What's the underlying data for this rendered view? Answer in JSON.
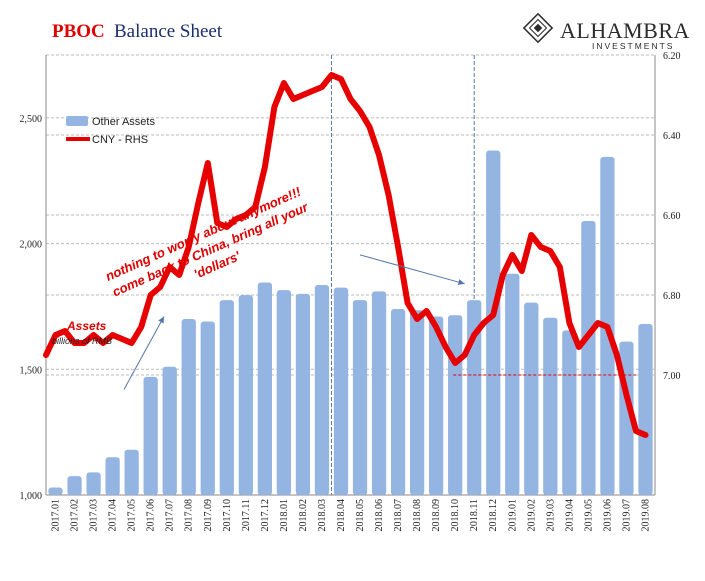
{
  "header": {
    "title_part1": "PBOC",
    "title_part2": "Balance Sheet"
  },
  "logo": {
    "name": "ALHAMBRA",
    "subtitle": "INVESTMENTS"
  },
  "legend": {
    "bars": "Other Assets",
    "line": "CNY - RHS"
  },
  "annotations": {
    "main": [
      "nothing to worry about anymore!!!",
      "come back to China, bring all your",
      "'dollars'"
    ],
    "assets_label": "Assets",
    "units_label": "billions of RMB"
  },
  "colors": {
    "bar": "#94b4e2",
    "line": "#e60000",
    "title_red": "#e00000",
    "title_blue": "#1a2f6e",
    "grid": "#bbbbbb",
    "refline": "#e60000"
  },
  "chart_data": {
    "type": "bar+line",
    "categories": [
      "2017.01",
      "2017.02",
      "2017.03",
      "2017.04",
      "2017.05",
      "2017.06",
      "2017.07",
      "2017.08",
      "2017.09",
      "2017.10",
      "2017.11",
      "2017.12",
      "2018.01",
      "2018.02",
      "2018.03",
      "2018.04",
      "2018.05",
      "2018.06",
      "2018.07",
      "2018.08",
      "2018.09",
      "2018.10",
      "2018.11",
      "2018.12",
      "2019.01",
      "2019.02",
      "2019.03",
      "2019.04",
      "2019.05",
      "2019.06",
      "2019.07",
      "2019.08"
    ],
    "series": [
      {
        "name": "Other Assets",
        "axis": "left",
        "type": "bar",
        "values": [
          1030,
          1075,
          1090,
          1150,
          1180,
          1470,
          1510,
          1700,
          1690,
          1775,
          1795,
          1845,
          1815,
          1800,
          1835,
          1825,
          1775,
          1810,
          1740,
          1735,
          1710,
          1715,
          1775,
          2370,
          1880,
          1765,
          1705,
          1655,
          2090,
          2345,
          1610,
          1680
        ]
      },
      {
        "name": "CNY - RHS",
        "axis": "right",
        "type": "line",
        "inverted": true,
        "x": [
          0,
          0.5,
          1,
          1.5,
          2,
          2.5,
          3,
          3.5,
          4,
          4.5,
          5,
          5.5,
          6,
          6.5,
          7,
          7.5,
          8,
          8.5,
          9,
          9.5,
          10,
          10.5,
          11,
          11.5,
          12,
          12.5,
          13,
          13.5,
          14,
          14.5,
          15,
          15.5,
          16,
          16.5,
          17,
          17.5,
          18,
          18.5,
          19,
          19.5,
          20,
          20.5,
          21,
          21.5,
          22,
          22.5,
          23,
          23.5,
          24,
          24.5,
          25,
          25.5,
          26,
          26.5,
          27,
          27.5,
          28,
          28.5,
          29,
          29.5,
          30,
          30.5,
          31,
          31.5
        ],
        "values": [
          6.95,
          6.9,
          6.89,
          6.92,
          6.92,
          6.9,
          6.92,
          6.9,
          6.91,
          6.92,
          6.88,
          6.8,
          6.78,
          6.73,
          6.75,
          6.68,
          6.57,
          6.47,
          6.62,
          6.63,
          6.61,
          6.6,
          6.58,
          6.48,
          6.33,
          6.27,
          6.31,
          6.3,
          6.29,
          6.28,
          6.25,
          6.26,
          6.31,
          6.34,
          6.38,
          6.45,
          6.55,
          6.68,
          6.82,
          6.86,
          6.84,
          6.88,
          6.93,
          6.97,
          6.95,
          6.9,
          6.87,
          6.85,
          6.75,
          6.7,
          6.74,
          6.65,
          6.68,
          6.69,
          6.73,
          6.87,
          6.93,
          6.9,
          6.87,
          6.88,
          6.95,
          7.05,
          7.14,
          7.15
        ]
      }
    ],
    "y_left": {
      "ticks": [
        1000,
        1500,
        2000,
        2500
      ],
      "tick_labels": [
        "1,000",
        "1,500",
        "2,000",
        "2,500"
      ],
      "range": [
        1000,
        2750
      ]
    },
    "y_right": {
      "ticks": [
        6.2,
        6.4,
        6.6,
        6.8,
        7.0
      ],
      "tick_labels": [
        "6.20",
        "6.40",
        "6.60",
        "6.80",
        "7.00"
      ],
      "range": [
        6.2,
        7.3
      ],
      "inverted": true
    },
    "reference_line": {
      "axis": "right",
      "value": 7.0,
      "from_category": 21.4,
      "to_category": 31
    },
    "vertical_markers": [
      15,
      22.5
    ],
    "arrows": [
      {
        "from": [
          4.1,
          1420
        ],
        "to": [
          6.2,
          1710
        ]
      },
      {
        "from": [
          16.5,
          1955
        ],
        "to": [
          22.0,
          1840
        ]
      }
    ],
    "grid": "horizontal",
    "legend_position": "top-left"
  }
}
